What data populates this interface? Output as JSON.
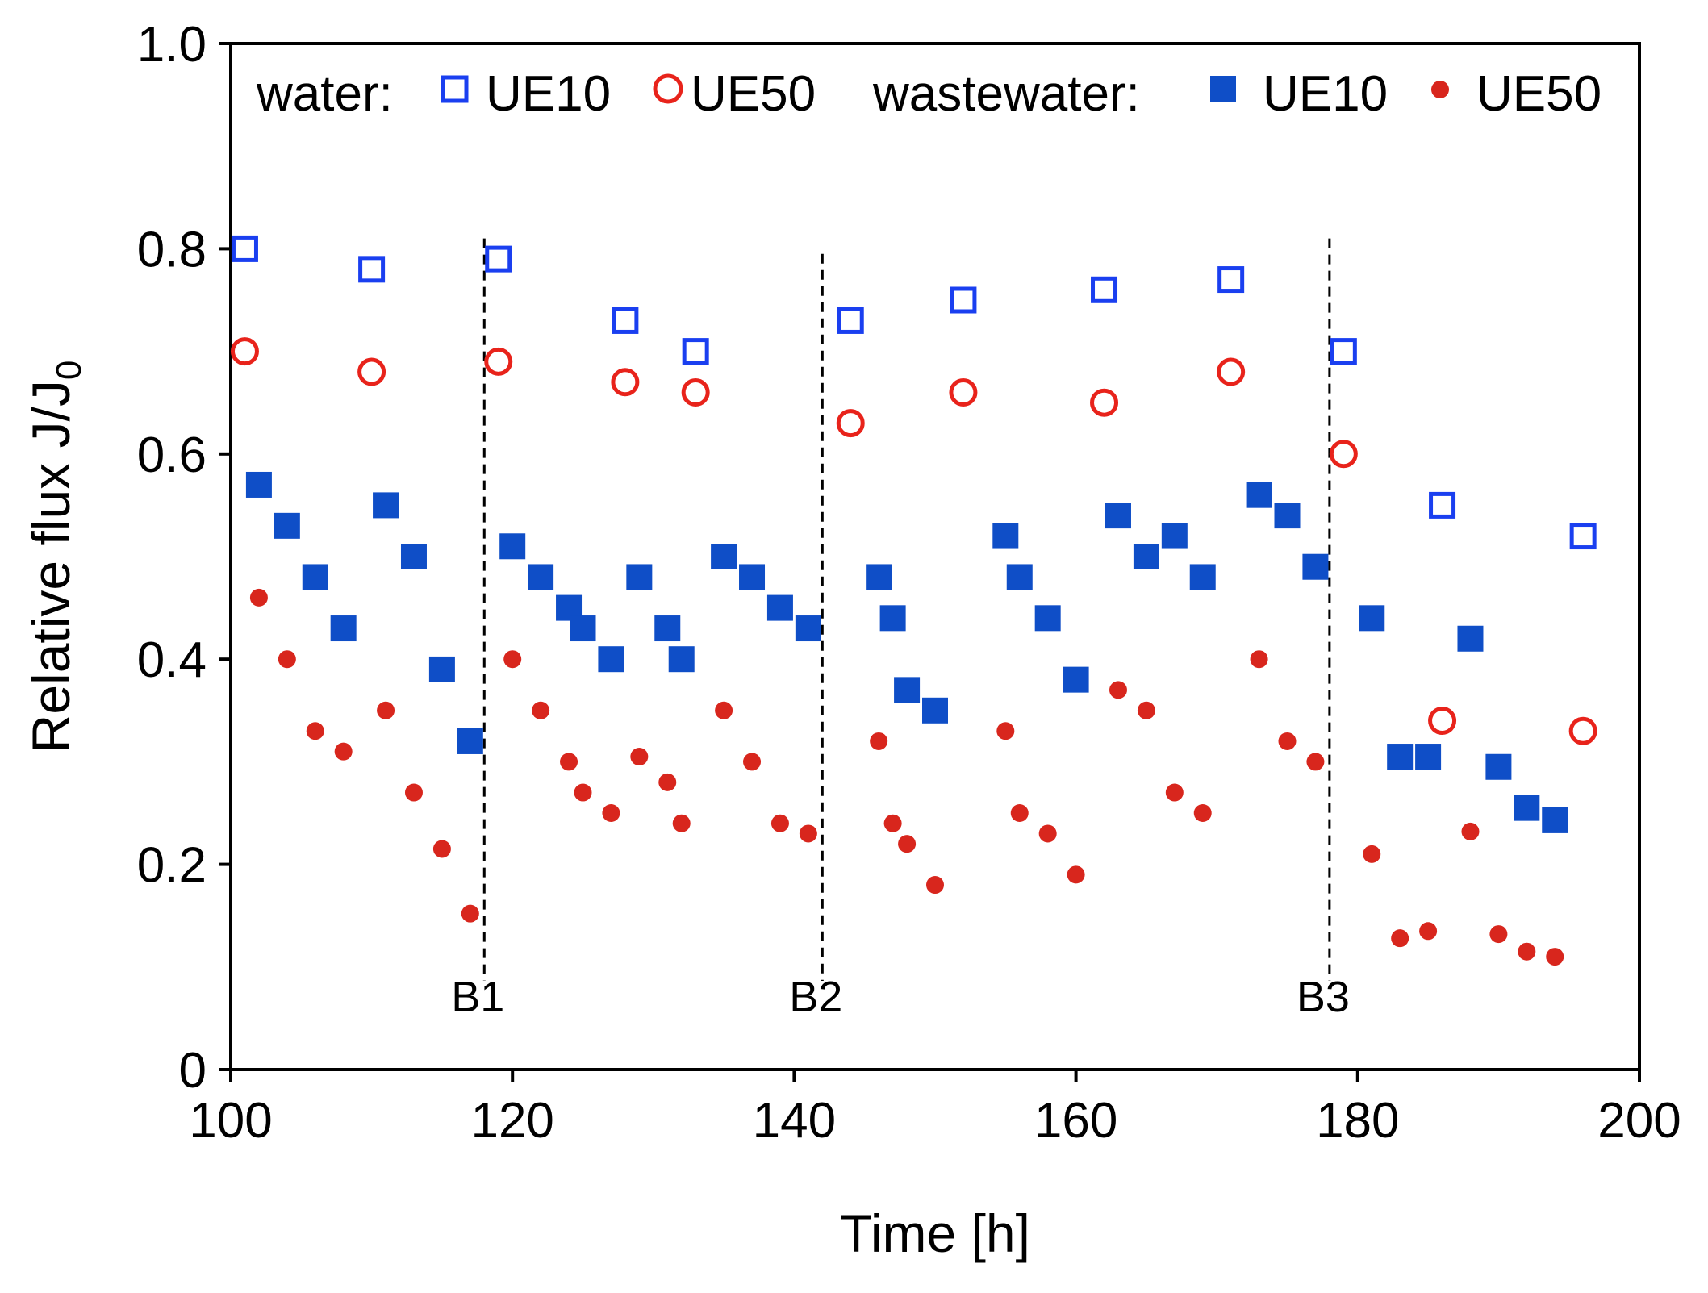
{
  "chart_data": {
    "type": "scatter",
    "title": "",
    "xlabel": "Time [h]",
    "ylabel": "Relative flux J/J",
    "ylabel_subscript": "0",
    "xlim": [
      100,
      200
    ],
    "ylim": [
      0,
      1.0
    ],
    "x_ticks": [
      100,
      120,
      140,
      160,
      180,
      200
    ],
    "x_tick_labels": [
      "100",
      "120",
      "140",
      "160",
      "180",
      "200"
    ],
    "y_ticks": [
      0,
      0.2,
      0.4,
      0.6,
      0.8,
      1.0
    ],
    "y_tick_labels": [
      "0",
      "0.2",
      "0.4",
      "0.6",
      "0.8",
      "1.0"
    ],
    "grid": false,
    "legend": {
      "placement": "top",
      "water_label": "water:",
      "wastewater_label": "wastewater:"
    },
    "colors": {
      "blue": "#1a3ff0",
      "blue_filled": "#0f4ec7",
      "red": "#e8231b",
      "red_filled": "#d8261d"
    },
    "batch_lines": [
      {
        "x": 118,
        "y_top": 0.81,
        "label": "B1"
      },
      {
        "x": 142,
        "y_top": 0.795,
        "label": "B2"
      },
      {
        "x": 178,
        "y_top": 0.81,
        "label": "B3"
      }
    ],
    "series": [
      {
        "name": "UE10",
        "group": "water",
        "marker": "square-open",
        "color": "#1a3ff0",
        "points": [
          [
            101,
            0.8
          ],
          [
            110,
            0.78
          ],
          [
            119,
            0.79
          ],
          [
            128,
            0.73
          ],
          [
            133,
            0.7
          ],
          [
            144,
            0.73
          ],
          [
            152,
            0.75
          ],
          [
            162,
            0.76
          ],
          [
            171,
            0.77
          ],
          [
            179,
            0.7
          ],
          [
            186,
            0.55
          ],
          [
            196,
            0.52
          ]
        ]
      },
      {
        "name": "UE50",
        "group": "water",
        "marker": "circle-open",
        "color": "#e8231b",
        "points": [
          [
            101,
            0.7
          ],
          [
            110,
            0.68
          ],
          [
            119,
            0.69
          ],
          [
            128,
            0.67
          ],
          [
            133,
            0.66
          ],
          [
            144,
            0.63
          ],
          [
            152,
            0.66
          ],
          [
            162,
            0.65
          ],
          [
            171,
            0.68
          ],
          [
            179,
            0.6
          ],
          [
            186,
            0.34
          ],
          [
            196,
            0.33
          ]
        ]
      },
      {
        "name": "UE10",
        "group": "wastewater",
        "marker": "square-filled",
        "color": "#0f4ec7",
        "points": [
          [
            102,
            0.57
          ],
          [
            104,
            0.53
          ],
          [
            106,
            0.48
          ],
          [
            108,
            0.43
          ],
          [
            111,
            0.55
          ],
          [
            113,
            0.5
          ],
          [
            115,
            0.39
          ],
          [
            117,
            0.32
          ],
          [
            120,
            0.51
          ],
          [
            122,
            0.48
          ],
          [
            124,
            0.45
          ],
          [
            125,
            0.43
          ],
          [
            127,
            0.4
          ],
          [
            129,
            0.48
          ],
          [
            131,
            0.43
          ],
          [
            132,
            0.4
          ],
          [
            135,
            0.5
          ],
          [
            137,
            0.48
          ],
          [
            139,
            0.45
          ],
          [
            141,
            0.43
          ],
          [
            146,
            0.48
          ],
          [
            147,
            0.44
          ],
          [
            148,
            0.37
          ],
          [
            150,
            0.35
          ],
          [
            155,
            0.52
          ],
          [
            156,
            0.48
          ],
          [
            158,
            0.44
          ],
          [
            160,
            0.38
          ],
          [
            163,
            0.54
          ],
          [
            165,
            0.5
          ],
          [
            167,
            0.52
          ],
          [
            169,
            0.48
          ],
          [
            173,
            0.56
          ],
          [
            175,
            0.54
          ],
          [
            177,
            0.49
          ],
          [
            181,
            0.44
          ],
          [
            183,
            0.305
          ],
          [
            185,
            0.305
          ],
          [
            188,
            0.42
          ],
          [
            190,
            0.295
          ],
          [
            192,
            0.255
          ],
          [
            194,
            0.243
          ]
        ]
      },
      {
        "name": "UE50",
        "group": "wastewater",
        "marker": "circle-filled",
        "color": "#d8261d",
        "points": [
          [
            102,
            0.46
          ],
          [
            104,
            0.4
          ],
          [
            106,
            0.33
          ],
          [
            108,
            0.31
          ],
          [
            111,
            0.35
          ],
          [
            113,
            0.27
          ],
          [
            115,
            0.215
          ],
          [
            117,
            0.152
          ],
          [
            120,
            0.4
          ],
          [
            122,
            0.35
          ],
          [
            124,
            0.3
          ],
          [
            125,
            0.27
          ],
          [
            127,
            0.25
          ],
          [
            129,
            0.305
          ],
          [
            131,
            0.28
          ],
          [
            132,
            0.24
          ],
          [
            135,
            0.35
          ],
          [
            137,
            0.3
          ],
          [
            139,
            0.24
          ],
          [
            141,
            0.23
          ],
          [
            146,
            0.32
          ],
          [
            147,
            0.24
          ],
          [
            148,
            0.22
          ],
          [
            150,
            0.18
          ],
          [
            155,
            0.33
          ],
          [
            156,
            0.25
          ],
          [
            158,
            0.23
          ],
          [
            160,
            0.19
          ],
          [
            163,
            0.37
          ],
          [
            165,
            0.35
          ],
          [
            167,
            0.27
          ],
          [
            169,
            0.25
          ],
          [
            173,
            0.4
          ],
          [
            175,
            0.32
          ],
          [
            177,
            0.3
          ],
          [
            181,
            0.21
          ],
          [
            183,
            0.128
          ],
          [
            185,
            0.135
          ],
          [
            188,
            0.232
          ],
          [
            190,
            0.132
          ],
          [
            192,
            0.115
          ],
          [
            194,
            0.11
          ]
        ]
      }
    ]
  }
}
